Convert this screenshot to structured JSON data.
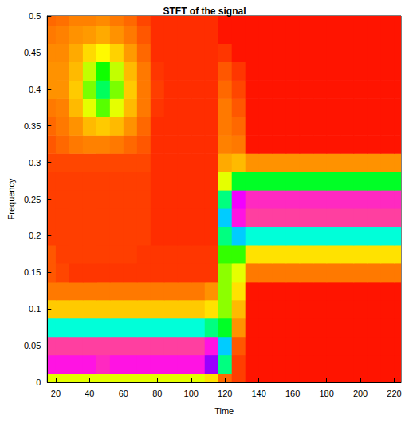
{
  "chart_data": {
    "type": "heatmap",
    "title": "STFT of the signal",
    "x_label": "Time",
    "y_label": "Frequency",
    "xlim": [
      15,
      224
    ],
    "xticks": [
      20,
      40,
      60,
      80,
      100,
      120,
      140,
      160,
      180,
      200,
      220
    ],
    "ylim": [
      0,
      0.5
    ],
    "yticks": [
      0,
      0.05,
      0.1,
      0.15,
      0.2,
      0.25,
      0.3,
      0.35,
      0.4,
      0.45,
      0.5
    ],
    "grid": false,
    "zlim": [
      0,
      10
    ],
    "x": [
      16,
      24,
      32,
      40,
      48,
      56,
      64,
      72,
      80,
      88,
      96,
      104,
      112,
      120,
      128,
      136,
      144,
      152,
      160,
      168,
      176,
      184,
      192,
      200,
      208,
      216,
      224
    ],
    "y": [
      0,
      0.025,
      0.05,
      0.075,
      0.1,
      0.125,
      0.15,
      0.175,
      0.2,
      0.225,
      0.25,
      0.275,
      0.3,
      0.325,
      0.35,
      0.375,
      0.4,
      0.425,
      0.45,
      0.475,
      0.5
    ],
    "values": [
      [
        3,
        3,
        3,
        3,
        3,
        3,
        3,
        3,
        3,
        3,
        3,
        3,
        2.5,
        1,
        0.5,
        0,
        0,
        0,
        0,
        0,
        0,
        0,
        0,
        0,
        0,
        0,
        0
      ],
      [
        9,
        9,
        9,
        9,
        9.5,
        9,
        9,
        9,
        9,
        9,
        9,
        9,
        8,
        5,
        0.5,
        0,
        0,
        0,
        0,
        0,
        0,
        0,
        0,
        0,
        0,
        0,
        0
      ],
      [
        10,
        10,
        10,
        10,
        10,
        10,
        10,
        10,
        10,
        10,
        10,
        10,
        9,
        6,
        0.8,
        0,
        0,
        0,
        0,
        0,
        0,
        0,
        0,
        0,
        0,
        0,
        0
      ],
      [
        5.5,
        5.5,
        5.5,
        5.5,
        5.5,
        5.5,
        5.5,
        5.5,
        5.5,
        5.5,
        5.5,
        5.5,
        5,
        4.5,
        1.5,
        0,
        0,
        0,
        0,
        0,
        0,
        0,
        0,
        0,
        0,
        0,
        0
      ],
      [
        2.2,
        2.2,
        2.2,
        2.2,
        2.2,
        2.2,
        2.2,
        2.2,
        2.2,
        2.2,
        2.2,
        2.2,
        2.5,
        3.5,
        2,
        0,
        0,
        0,
        0,
        0,
        0,
        0,
        0,
        0,
        0,
        0,
        0
      ],
      [
        1.2,
        1.2,
        1.2,
        1.2,
        1.2,
        1.2,
        1.2,
        1.2,
        1.2,
        1.2,
        1.2,
        1.2,
        1.5,
        3.5,
        2.5,
        0,
        0,
        0,
        0,
        0,
        0,
        0,
        0,
        0,
        0,
        0,
        0
      ],
      [
        0.8,
        0.6,
        0.4,
        0.4,
        0.4,
        0.4,
        0.4,
        0.4,
        0.4,
        0.4,
        0.4,
        0.4,
        0.4,
        3.5,
        3,
        1.2,
        1.2,
        1.2,
        1.2,
        1.2,
        1.2,
        1.2,
        1.2,
        1.2,
        1.2,
        1.2,
        1.2
      ],
      [
        0.8,
        0.5,
        0.5,
        0.5,
        0.5,
        0.5,
        0.5,
        0.4,
        0.4,
        0.4,
        0.4,
        0.4,
        0.4,
        4,
        4,
        2.5,
        2.5,
        2.5,
        2.5,
        2.5,
        2.5,
        2.5,
        2.5,
        2.5,
        2.5,
        2.5,
        2.5
      ],
      [
        0.5,
        0.5,
        0.5,
        0.5,
        0.5,
        0.5,
        0.5,
        0.5,
        0.3,
        0.3,
        0.3,
        0.3,
        0.3,
        5,
        6,
        5.5,
        5.5,
        5.5,
        5.5,
        5.5,
        5.5,
        5.5,
        5.5,
        5.5,
        5.5,
        5.5,
        5.5
      ],
      [
        0.5,
        0.5,
        0.5,
        0.5,
        0.5,
        0.5,
        0.5,
        0.5,
        0.3,
        0.3,
        0.3,
        0.3,
        0.3,
        6,
        9,
        10,
        10,
        10,
        10,
        10,
        10,
        10,
        10,
        10,
        10,
        10,
        10
      ],
      [
        0.5,
        0.5,
        0.5,
        0.5,
        0.5,
        0.5,
        0.5,
        0.5,
        0.3,
        0.3,
        0.3,
        0.3,
        0.3,
        5,
        8.5,
        9.5,
        9.5,
        9.5,
        9.5,
        9.5,
        9.5,
        9.5,
        9.5,
        9.5,
        9.5,
        9.5,
        9.5
      ],
      [
        0.5,
        0.5,
        0.5,
        0.5,
        0.5,
        0.5,
        0.5,
        0.5,
        0.3,
        0.3,
        0.3,
        0.3,
        0.3,
        3,
        4.5,
        4.5,
        4.5,
        4.5,
        4.5,
        4.5,
        4.5,
        4.5,
        4.5,
        4.5,
        4.5,
        4.5,
        4.5
      ],
      [
        0.6,
        0.6,
        0.6,
        0.6,
        0.6,
        0.6,
        0.6,
        0.6,
        0.3,
        0.3,
        0.3,
        0.3,
        0.3,
        1.8,
        2,
        1.5,
        1.5,
        1.5,
        1.5,
        1.5,
        1.5,
        1.5,
        1.5,
        1.5,
        1.5,
        1.5,
        1.5
      ],
      [
        0.8,
        1,
        1.2,
        1.3,
        1.3,
        1.2,
        1,
        0.8,
        0.3,
        0.3,
        0.3,
        0.3,
        0.3,
        1.3,
        1.2,
        0,
        0,
        0,
        0,
        0,
        0,
        0,
        0,
        0,
        0,
        0,
        0
      ],
      [
        1,
        1.2,
        1.5,
        2,
        2.2,
        2,
        1.5,
        1,
        0.3,
        0.3,
        0.3,
        0.3,
        0.3,
        1.2,
        1,
        0,
        0,
        0,
        0,
        0,
        0,
        0,
        0,
        0,
        0,
        0,
        0
      ],
      [
        1.2,
        1.3,
        2,
        3,
        3.8,
        3,
        2,
        1.2,
        0.4,
        0.3,
        0.3,
        0.3,
        0.3,
        1.2,
        0.8,
        0,
        0,
        0,
        0,
        0,
        0,
        0,
        0,
        0,
        0,
        0,
        0
      ],
      [
        1.5,
        1.5,
        2.2,
        3.6,
        4.8,
        3.6,
        2.2,
        1.2,
        0.5,
        0.3,
        0.3,
        0.3,
        0.3,
        1,
        0.6,
        0,
        0,
        0,
        0,
        0,
        0,
        0,
        0,
        0,
        0,
        0,
        0
      ],
      [
        1.5,
        1.5,
        2,
        3.2,
        4.2,
        3.2,
        2,
        1.2,
        0.4,
        0.3,
        0.3,
        0.3,
        0.3,
        0.8,
        0.4,
        0,
        0,
        0,
        0,
        0,
        0,
        0,
        0,
        0,
        0,
        0,
        0
      ],
      [
        1.4,
        1.4,
        1.8,
        2.4,
        2.8,
        2.3,
        1.6,
        1,
        0.3,
        0.3,
        0.3,
        0.3,
        0.3,
        0.4,
        0,
        0,
        0,
        0,
        0,
        0,
        0,
        0,
        0,
        0,
        0,
        0,
        0
      ],
      [
        1.2,
        1.3,
        1.5,
        1.6,
        1.8,
        1.5,
        1.2,
        0.8,
        0.3,
        0.3,
        0.3,
        0.3,
        0.3,
        0,
        0,
        0,
        0,
        0,
        0,
        0,
        0,
        0,
        0,
        0,
        0,
        0,
        0
      ],
      [
        1,
        1.1,
        1.3,
        1.3,
        1.4,
        1.2,
        1,
        0.6,
        0.3,
        0.3,
        0.3,
        0.3,
        0.3,
        0,
        0,
        0,
        0,
        0,
        0,
        0,
        0,
        0,
        0,
        0,
        0,
        0,
        0
      ]
    ]
  }
}
